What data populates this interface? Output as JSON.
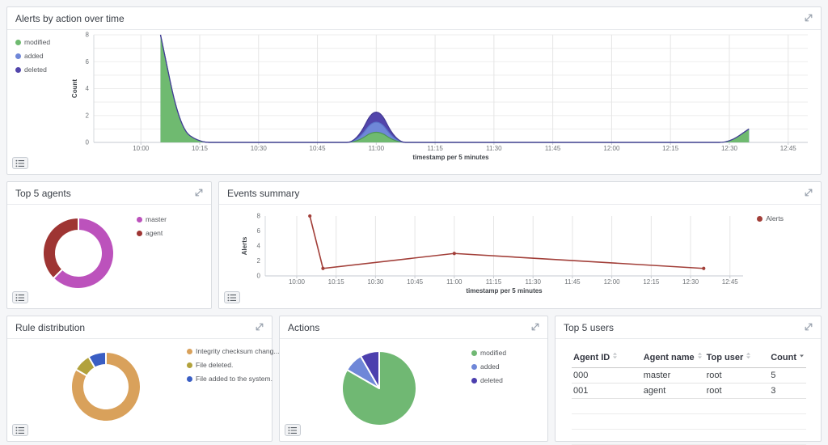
{
  "colors": {
    "panel_border": "#d9dce1",
    "page_background": "#f5f6f8",
    "title_text": "#3a3f47",
    "axis_text": "#6f7377",
    "gridline": "#e5e5e5",
    "modified_green": "#6fba70",
    "added_blue": "#6f87d8",
    "deleted_purple": "#5245ab",
    "master_magenta": "#bc52bc",
    "agent_dark_red": "#9e3533",
    "alerts_line_red": "#a23f39",
    "checksum_tan": "#d9a15b",
    "file_deleted_olive": "#b2a23c",
    "file_added_blue": "#3a5ec4"
  },
  "panels": {
    "alerts_by_action": {
      "title": "Alerts by action over time",
      "legend": [
        {
          "label": "modified",
          "color": "#6fba70"
        },
        {
          "label": "added",
          "color": "#6f87d8"
        },
        {
          "label": "deleted",
          "color": "#5245ab"
        }
      ]
    },
    "top_agents": {
      "title": "Top 5 agents",
      "legend": [
        {
          "label": "master",
          "color": "#bc52bc"
        },
        {
          "label": "agent",
          "color": "#9e3533"
        }
      ]
    },
    "events_summary": {
      "title": "Events summary",
      "legend": [
        {
          "label": "Alerts",
          "color": "#a23f39"
        }
      ]
    },
    "rule_distribution": {
      "title": "Rule distribution",
      "legend": [
        {
          "label": "Integrity checksum chang...",
          "color": "#d9a15b"
        },
        {
          "label": "File deleted.",
          "color": "#b2a23c"
        },
        {
          "label": "File added to the system.",
          "color": "#3a5ec4"
        }
      ]
    },
    "actions": {
      "title": "Actions",
      "legend": [
        {
          "label": "modified",
          "color": "#70b873"
        },
        {
          "label": "added",
          "color": "#6f87d8"
        },
        {
          "label": "deleted",
          "color": "#4c3fae"
        }
      ]
    },
    "top_users": {
      "title": "Top 5 users",
      "table": {
        "columns": [
          {
            "label": "Agent ID",
            "sort": "both"
          },
          {
            "label": "Agent name",
            "sort": "both"
          },
          {
            "label": "Top user",
            "sort": "both"
          },
          {
            "label": "Count",
            "sort": "desc"
          }
        ],
        "rows": [
          [
            "000",
            "master",
            "root",
            "5"
          ],
          [
            "001",
            "agent",
            "root",
            "3"
          ]
        ],
        "empty_rows": 3
      }
    }
  },
  "chart_data": [
    {
      "panel": "alerts_by_action",
      "type": "area",
      "stacked": true,
      "title": "Alerts by action over time",
      "xlabel": "timestamp per 5 minutes",
      "ylabel": "Count",
      "ylim": [
        0,
        8
      ],
      "y_ticks": [
        0,
        2,
        4,
        6,
        8
      ],
      "x_ticks": [
        "10:00",
        "10:15",
        "10:30",
        "10:45",
        "11:00",
        "11:15",
        "11:30",
        "11:45",
        "12:00",
        "12:15",
        "12:30",
        "12:45"
      ],
      "x_range": [
        "09:48",
        "12:50"
      ],
      "bucket_minutes": 5,
      "data_start": "10:05",
      "data_end": "12:35",
      "series": [
        {
          "name": "modified",
          "color": "#6fba70",
          "stroke": "#4c9355",
          "points": {
            "10:05": 8,
            "10:10": 1,
            "11:00": 1,
            "12:35": 1
          }
        },
        {
          "name": "added",
          "color": "#6f87d8",
          "stroke": "#5a74c9",
          "points": {
            "11:00": 1
          }
        },
        {
          "name": "deleted",
          "color": "#5245ab",
          "stroke": "#443a93",
          "points": {
            "11:00": 1
          }
        }
      ]
    },
    {
      "panel": "events_summary",
      "type": "line",
      "title": "Events summary",
      "xlabel": "timestamp per 5 minutes",
      "ylabel": "Alerts",
      "ylim": [
        0,
        8
      ],
      "y_ticks": [
        0,
        2,
        4,
        6,
        8
      ],
      "x_ticks": [
        "10:00",
        "10:15",
        "10:30",
        "10:45",
        "11:00",
        "11:15",
        "11:30",
        "11:45",
        "12:00",
        "12:15",
        "12:30",
        "12:45"
      ],
      "x_range": [
        "09:48",
        "12:50"
      ],
      "series": [
        {
          "name": "Alerts",
          "color": "#a23f39",
          "points": [
            [
              "10:05",
              8
            ],
            [
              "10:10",
              1
            ],
            [
              "11:00",
              3
            ],
            [
              "12:35",
              1
            ]
          ]
        }
      ]
    },
    {
      "panel": "top_agents",
      "type": "donut",
      "title": "Top 5 agents",
      "slices": [
        {
          "label": "master",
          "value": 5,
          "color": "#bc52bc"
        },
        {
          "label": "agent",
          "value": 3,
          "color": "#9e3533"
        }
      ]
    },
    {
      "panel": "rule_distribution",
      "type": "donut",
      "title": "Rule distribution",
      "slices": [
        {
          "label": "Integrity checksum chang...",
          "value": 10,
          "color": "#d9a15b"
        },
        {
          "label": "File deleted.",
          "value": 1,
          "color": "#b2a23c"
        },
        {
          "label": "File added to the system.",
          "value": 1,
          "color": "#3a5ec4"
        }
      ]
    },
    {
      "panel": "actions",
      "type": "pie",
      "title": "Actions",
      "slices": [
        {
          "label": "modified",
          "value": 10,
          "color": "#70b873"
        },
        {
          "label": "added",
          "value": 1,
          "color": "#6f87d8"
        },
        {
          "label": "deleted",
          "value": 1,
          "color": "#4c3fae"
        }
      ]
    }
  ]
}
